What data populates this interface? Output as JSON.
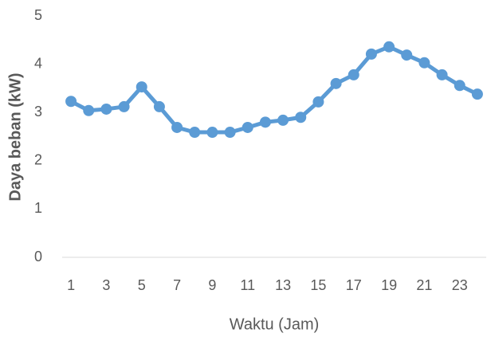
{
  "chart_data": {
    "type": "line",
    "x_label": "Waktu (Jam)",
    "y_label": "Daya beban (kW)",
    "categories": [
      1,
      null,
      3,
      null,
      5,
      null,
      7,
      null,
      9,
      null,
      11,
      null,
      13,
      null,
      15,
      null,
      17,
      null,
      19,
      null,
      21,
      null,
      23,
      null
    ],
    "series": [
      {
        "name": "Daya beban",
        "color": "#5b9bd5",
        "values": [
          3.23,
          3.04,
          3.07,
          3.12,
          3.53,
          3.12,
          2.69,
          2.59,
          2.59,
          2.59,
          2.69,
          2.8,
          2.84,
          2.9,
          3.22,
          3.6,
          3.78,
          4.21,
          4.36,
          4.19,
          4.03,
          3.78,
          3.56,
          3.38
        ]
      }
    ],
    "ylim": [
      0,
      5
    ],
    "yticks": [
      0,
      1,
      2,
      3,
      4,
      5
    ],
    "grid": false
  }
}
